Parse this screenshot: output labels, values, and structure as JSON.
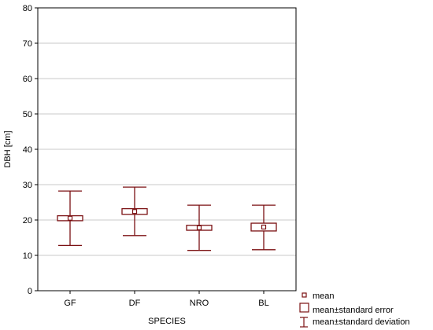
{
  "colors": {
    "mark": "#7b1113",
    "grid": "#c8c8c8",
    "axis": "#000000"
  },
  "chart_data": {
    "type": "box",
    "title": "",
    "xlabel": "SPECIES",
    "ylabel": "DBH [cm]",
    "ylim": [
      0,
      80
    ],
    "yticks": [
      0,
      10,
      20,
      30,
      40,
      50,
      60,
      70,
      80
    ],
    "grid": true,
    "legend_position": "bottom-right",
    "categories": [
      "GF",
      "DF",
      "NRO",
      "BL"
    ],
    "mean": [
      20.5,
      22.4,
      17.8,
      18.0
    ],
    "se_lower": [
      19.8,
      21.6,
      17.1,
      16.9
    ],
    "se_upper": [
      21.2,
      23.2,
      18.5,
      19.1
    ],
    "sd_lower": [
      12.8,
      15.6,
      11.4,
      11.6
    ],
    "sd_upper": [
      28.2,
      29.3,
      24.2,
      24.2
    ],
    "legend": [
      "mean",
      "mean±standard error",
      "mean±standard deviation"
    ]
  }
}
